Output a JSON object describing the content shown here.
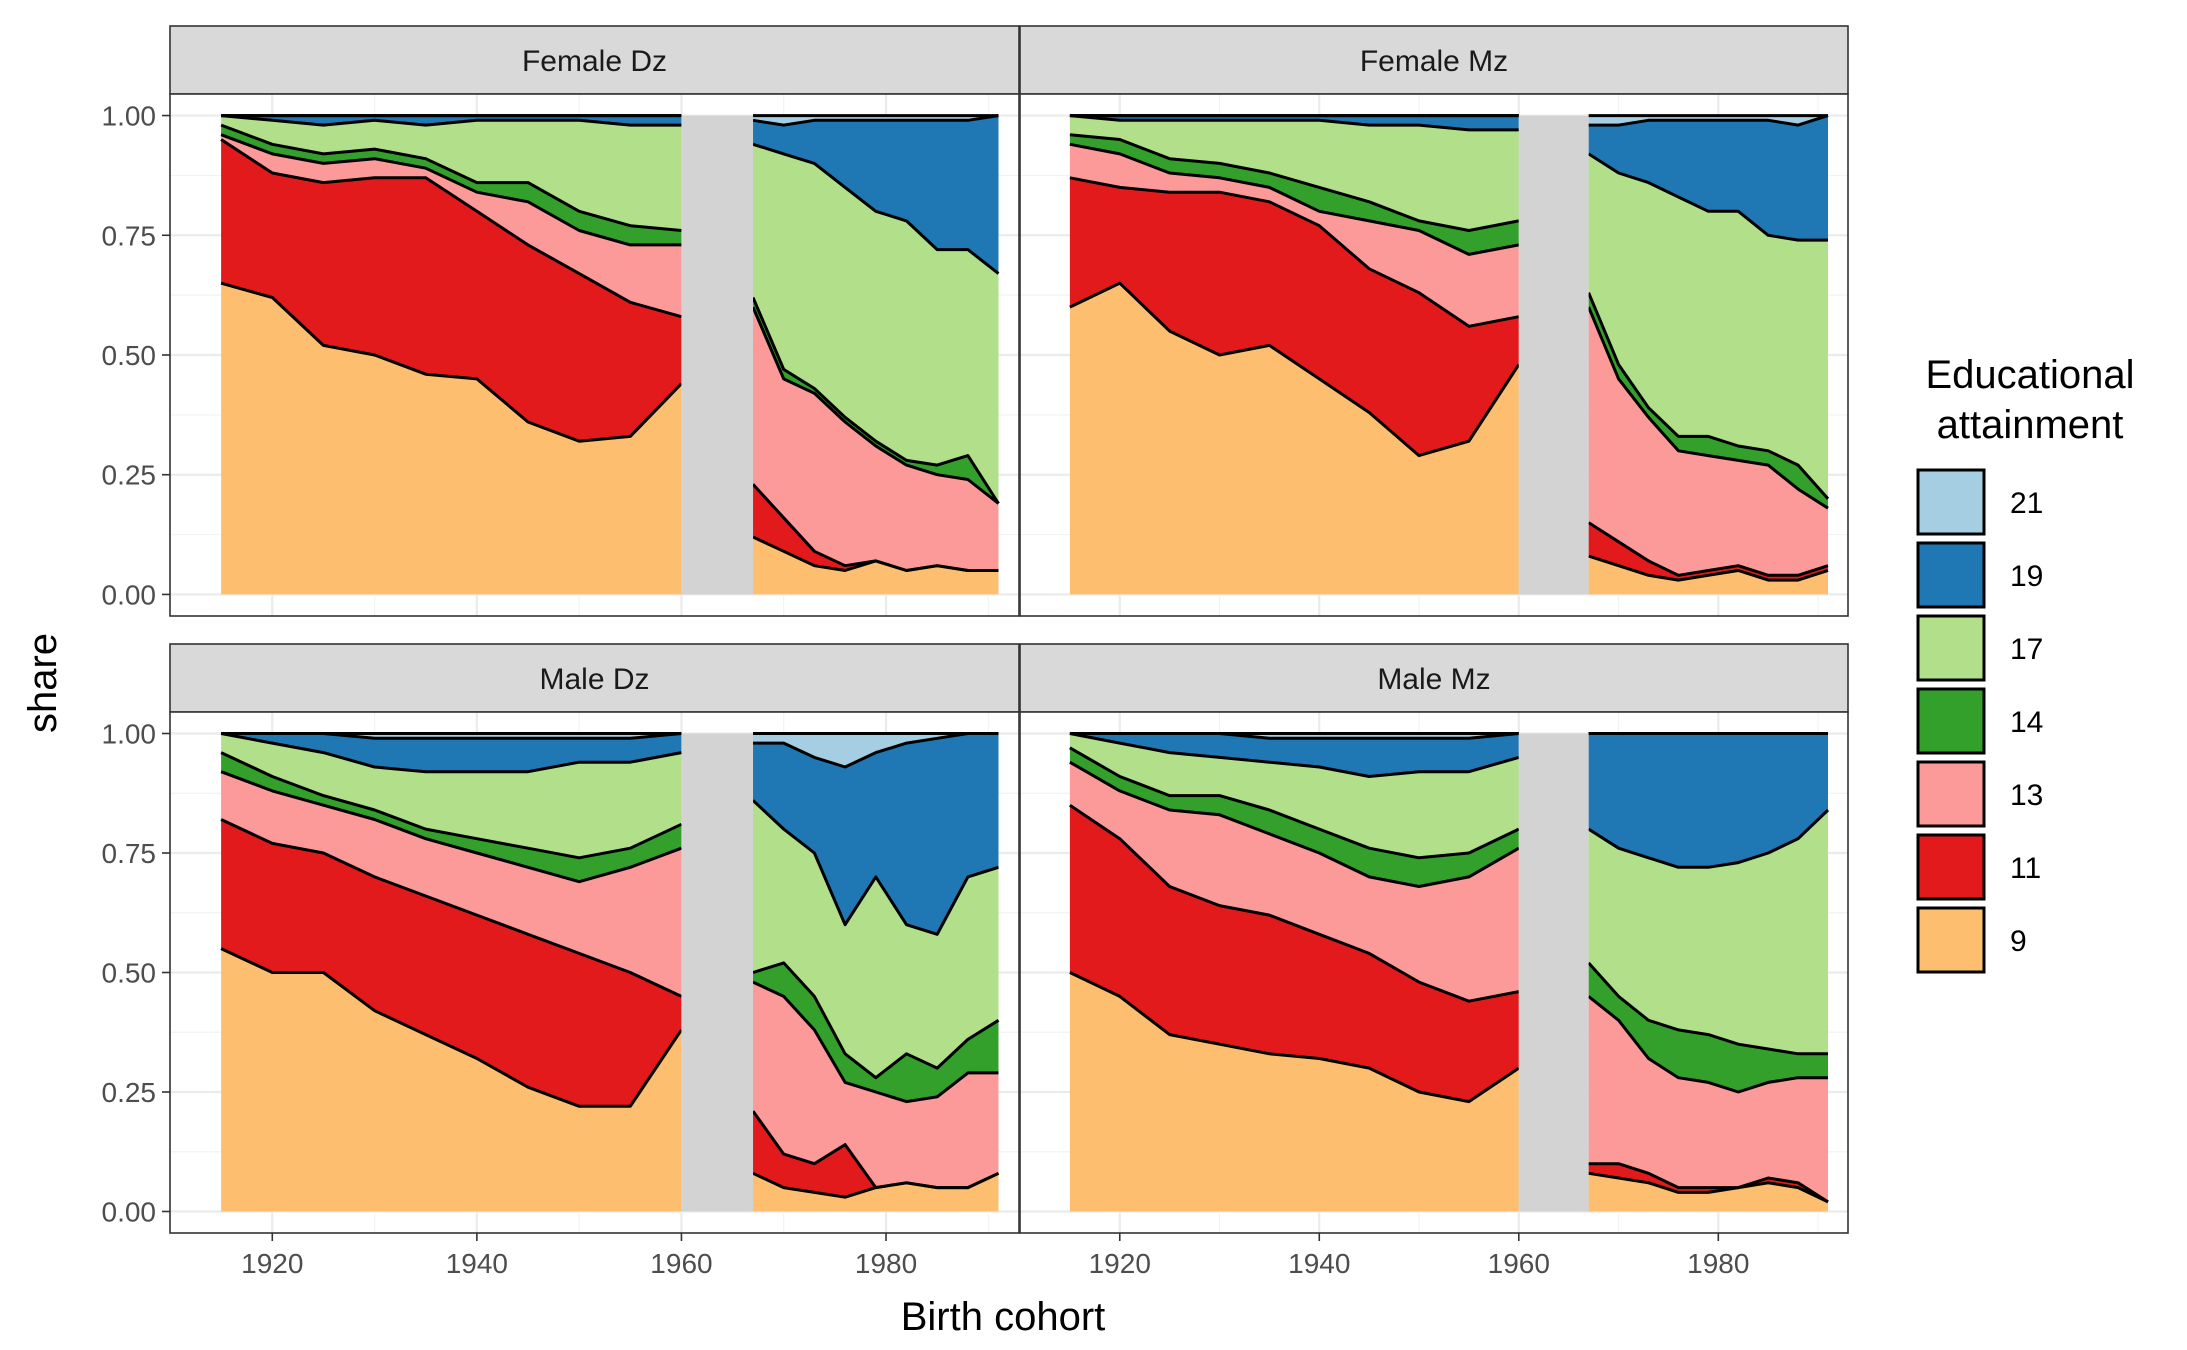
{
  "chart_data": {
    "type": "area",
    "stacked": true,
    "xlabel": "Birth cohort",
    "ylabel": "share",
    "xlim": [
      1910,
      1993
    ],
    "ylim": [
      -0.045,
      1.045
    ],
    "x_ticks": [
      1920,
      1940,
      1960,
      1980
    ],
    "y_ticks": [
      0,
      0.25,
      0.5,
      0.75,
      1
    ],
    "y_tick_labels": [
      "0.00",
      "0.25",
      "0.50",
      "0.75",
      "1.00"
    ],
    "grid": true,
    "gap": {
      "from": 1960,
      "to": 1967,
      "color": "#d3d3d3"
    },
    "legend": {
      "title_lines": [
        "Educational",
        "attainment"
      ],
      "placement": "right",
      "entries": [
        {
          "label": "21",
          "color": "#a6cee3"
        },
        {
          "label": "19",
          "color": "#1f78b4"
        },
        {
          "label": "17",
          "color": "#b2df8a"
        },
        {
          "label": "14",
          "color": "#33a02c"
        },
        {
          "label": "13",
          "color": "#fb9a99"
        },
        {
          "label": "11",
          "color": "#e31a1c"
        },
        {
          "label": "9",
          "color": "#fdbf6f"
        }
      ]
    },
    "stack_order": [
      "9",
      "11",
      "13",
      "14",
      "17",
      "19",
      "21"
    ],
    "colors": {
      "9": "#fdbf6f",
      "11": "#e31a1c",
      "13": "#fb9a99",
      "14": "#33a02c",
      "17": "#b2df8a",
      "19": "#1f78b4",
      "21": "#a6cee3"
    },
    "panels": [
      {
        "strip": "Female Dz",
        "segments": [
          {
            "x": [
              1915,
              1920,
              1925,
              1930,
              1935,
              1940,
              1945,
              1950,
              1955,
              1960
            ],
            "cumulative": {
              "9": [
                0.65,
                0.62,
                0.52,
                0.5,
                0.46,
                0.45,
                0.36,
                0.32,
                0.33,
                0.44
              ],
              "11": [
                0.95,
                0.88,
                0.86,
                0.87,
                0.87,
                0.8,
                0.73,
                0.67,
                0.61,
                0.58
              ],
              "13": [
                0.96,
                0.92,
                0.9,
                0.91,
                0.89,
                0.84,
                0.82,
                0.76,
                0.73,
                0.73
              ],
              "14": [
                0.98,
                0.94,
                0.92,
                0.93,
                0.91,
                0.86,
                0.86,
                0.8,
                0.77,
                0.76
              ],
              "17": [
                1.0,
                0.99,
                0.98,
                0.99,
                0.98,
                0.99,
                0.99,
                0.99,
                0.98,
                0.98
              ],
              "19": [
                1.0,
                1.0,
                1.0,
                1.0,
                1.0,
                1.0,
                1.0,
                1.0,
                1.0,
                1.0
              ],
              "21": [
                1.0,
                1.0,
                1.0,
                1.0,
                1.0,
                1.0,
                1.0,
                1.0,
                1.0,
                1.0
              ]
            }
          },
          {
            "x": [
              1967,
              1970,
              1973,
              1976,
              1979,
              1982,
              1985,
              1988,
              1991
            ],
            "cumulative": {
              "9": [
                0.12,
                0.09,
                0.06,
                0.05,
                0.07,
                0.05,
                0.06,
                0.05,
                0.05
              ],
              "11": [
                0.23,
                0.16,
                0.09,
                0.06,
                0.07,
                0.05,
                0.06,
                0.05,
                0.05
              ],
              "13": [
                0.6,
                0.45,
                0.42,
                0.36,
                0.31,
                0.27,
                0.25,
                0.24,
                0.19
              ],
              "14": [
                0.62,
                0.47,
                0.43,
                0.37,
                0.32,
                0.28,
                0.27,
                0.29,
                0.19
              ],
              "17": [
                0.94,
                0.92,
                0.9,
                0.85,
                0.8,
                0.78,
                0.72,
                0.72,
                0.67
              ],
              "19": [
                0.99,
                0.98,
                0.99,
                0.99,
                0.99,
                0.99,
                0.99,
                0.99,
                1.0
              ],
              "21": [
                1.0,
                1.0,
                1.0,
                1.0,
                1.0,
                1.0,
                1.0,
                1.0,
                1.0
              ]
            }
          }
        ]
      },
      {
        "strip": "Female Mz",
        "segments": [
          {
            "x": [
              1915,
              1920,
              1925,
              1930,
              1935,
              1940,
              1945,
              1950,
              1955,
              1960
            ],
            "cumulative": {
              "9": [
                0.6,
                0.65,
                0.55,
                0.5,
                0.52,
                0.45,
                0.38,
                0.29,
                0.32,
                0.48
              ],
              "11": [
                0.87,
                0.85,
                0.84,
                0.84,
                0.82,
                0.77,
                0.68,
                0.63,
                0.56,
                0.58
              ],
              "13": [
                0.94,
                0.92,
                0.88,
                0.87,
                0.85,
                0.8,
                0.78,
                0.76,
                0.71,
                0.73
              ],
              "14": [
                0.96,
                0.95,
                0.91,
                0.9,
                0.88,
                0.85,
                0.82,
                0.78,
                0.76,
                0.78
              ],
              "17": [
                1.0,
                0.99,
                0.99,
                0.99,
                0.99,
                0.99,
                0.98,
                0.98,
                0.97,
                0.97
              ],
              "19": [
                1.0,
                1.0,
                1.0,
                1.0,
                1.0,
                1.0,
                1.0,
                1.0,
                1.0,
                1.0
              ],
              "21": [
                1.0,
                1.0,
                1.0,
                1.0,
                1.0,
                1.0,
                1.0,
                1.0,
                1.0,
                1.0
              ]
            }
          },
          {
            "x": [
              1967,
              1970,
              1973,
              1976,
              1979,
              1982,
              1985,
              1988,
              1991
            ],
            "cumulative": {
              "9": [
                0.08,
                0.06,
                0.04,
                0.03,
                0.04,
                0.05,
                0.03,
                0.03,
                0.05
              ],
              "11": [
                0.15,
                0.11,
                0.07,
                0.04,
                0.05,
                0.06,
                0.04,
                0.04,
                0.06
              ],
              "13": [
                0.6,
                0.45,
                0.37,
                0.3,
                0.29,
                0.28,
                0.27,
                0.22,
                0.18
              ],
              "14": [
                0.63,
                0.48,
                0.39,
                0.33,
                0.33,
                0.31,
                0.3,
                0.27,
                0.2
              ],
              "17": [
                0.92,
                0.88,
                0.86,
                0.83,
                0.8,
                0.8,
                0.75,
                0.74,
                0.74
              ],
              "19": [
                0.98,
                0.98,
                0.99,
                0.99,
                0.99,
                0.99,
                0.99,
                0.98,
                1.0
              ],
              "21": [
                1.0,
                1.0,
                1.0,
                1.0,
                1.0,
                1.0,
                1.0,
                1.0,
                1.0
              ]
            }
          }
        ]
      },
      {
        "strip": "Male Dz",
        "segments": [
          {
            "x": [
              1915,
              1920,
              1925,
              1930,
              1935,
              1940,
              1945,
              1950,
              1955,
              1960
            ],
            "cumulative": {
              "9": [
                0.55,
                0.5,
                0.5,
                0.42,
                0.37,
                0.32,
                0.26,
                0.22,
                0.22,
                0.38
              ],
              "11": [
                0.82,
                0.77,
                0.75,
                0.7,
                0.66,
                0.62,
                0.58,
                0.54,
                0.5,
                0.45
              ],
              "13": [
                0.92,
                0.88,
                0.85,
                0.82,
                0.78,
                0.75,
                0.72,
                0.69,
                0.72,
                0.76
              ],
              "14": [
                0.96,
                0.91,
                0.87,
                0.84,
                0.8,
                0.78,
                0.76,
                0.74,
                0.76,
                0.81
              ],
              "17": [
                1.0,
                0.98,
                0.96,
                0.93,
                0.92,
                0.92,
                0.92,
                0.94,
                0.94,
                0.96
              ],
              "19": [
                1.0,
                1.0,
                1.0,
                0.99,
                0.99,
                0.99,
                0.99,
                0.99,
                0.99,
                1.0
              ],
              "21": [
                1.0,
                1.0,
                1.0,
                1.0,
                1.0,
                1.0,
                1.0,
                1.0,
                1.0,
                1.0
              ]
            }
          },
          {
            "x": [
              1967,
              1970,
              1973,
              1976,
              1979,
              1982,
              1985,
              1988,
              1991
            ],
            "cumulative": {
              "9": [
                0.08,
                0.05,
                0.04,
                0.03,
                0.05,
                0.06,
                0.05,
                0.05,
                0.08
              ],
              "11": [
                0.21,
                0.12,
                0.1,
                0.14,
                0.05,
                0.06,
                0.05,
                0.05,
                0.08
              ],
              "13": [
                0.48,
                0.45,
                0.38,
                0.27,
                0.25,
                0.23,
                0.24,
                0.29,
                0.29
              ],
              "14": [
                0.5,
                0.52,
                0.45,
                0.33,
                0.28,
                0.33,
                0.3,
                0.36,
                0.4
              ],
              "17": [
                0.86,
                0.8,
                0.75,
                0.6,
                0.7,
                0.6,
                0.58,
                0.7,
                0.72
              ],
              "19": [
                0.98,
                0.98,
                0.95,
                0.93,
                0.96,
                0.98,
                0.99,
                1.0,
                1.0
              ],
              "21": [
                1.0,
                1.0,
                1.0,
                1.0,
                1.0,
                1.0,
                1.0,
                1.0,
                1.0
              ]
            }
          }
        ]
      },
      {
        "strip": "Male Mz",
        "segments": [
          {
            "x": [
              1915,
              1920,
              1925,
              1930,
              1935,
              1940,
              1945,
              1950,
              1955,
              1960
            ],
            "cumulative": {
              "9": [
                0.5,
                0.45,
                0.37,
                0.35,
                0.33,
                0.32,
                0.3,
                0.25,
                0.23,
                0.3
              ],
              "11": [
                0.85,
                0.78,
                0.68,
                0.64,
                0.62,
                0.58,
                0.54,
                0.48,
                0.44,
                0.46
              ],
              "13": [
                0.94,
                0.88,
                0.84,
                0.83,
                0.79,
                0.75,
                0.7,
                0.68,
                0.7,
                0.76
              ],
              "14": [
                0.97,
                0.91,
                0.87,
                0.87,
                0.84,
                0.8,
                0.76,
                0.74,
                0.75,
                0.8
              ],
              "17": [
                1.0,
                0.98,
                0.96,
                0.95,
                0.94,
                0.93,
                0.91,
                0.92,
                0.92,
                0.95
              ],
              "19": [
                1.0,
                1.0,
                1.0,
                1.0,
                0.99,
                0.99,
                0.99,
                0.99,
                0.99,
                1.0
              ],
              "21": [
                1.0,
                1.0,
                1.0,
                1.0,
                1.0,
                1.0,
                1.0,
                1.0,
                1.0,
                1.0
              ]
            }
          },
          {
            "x": [
              1967,
              1970,
              1973,
              1976,
              1979,
              1982,
              1985,
              1988,
              1991
            ],
            "cumulative": {
              "9": [
                0.08,
                0.07,
                0.06,
                0.04,
                0.04,
                0.05,
                0.06,
                0.05,
                0.02
              ],
              "11": [
                0.1,
                0.1,
                0.08,
                0.05,
                0.05,
                0.05,
                0.07,
                0.06,
                0.02
              ],
              "13": [
                0.45,
                0.4,
                0.32,
                0.28,
                0.27,
                0.25,
                0.27,
                0.28,
                0.28
              ],
              "14": [
                0.52,
                0.45,
                0.4,
                0.38,
                0.37,
                0.35,
                0.34,
                0.33,
                0.33
              ],
              "17": [
                0.8,
                0.76,
                0.74,
                0.72,
                0.72,
                0.73,
                0.75,
                0.78,
                0.84
              ],
              "19": [
                1.0,
                1.0,
                1.0,
                1.0,
                1.0,
                1.0,
                1.0,
                1.0,
                1.0
              ],
              "21": [
                1.0,
                1.0,
                1.0,
                1.0,
                1.0,
                1.0,
                1.0,
                1.0,
                1.0
              ]
            }
          }
        ]
      }
    ]
  }
}
